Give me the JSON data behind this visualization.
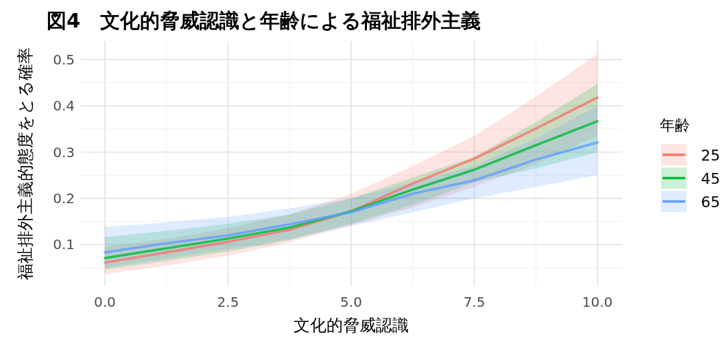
{
  "chart_data": {
    "type": "line",
    "title": "図4　文化的脅威認識と年齢による福祉排外主義",
    "xlabel": "文化的脅威認識",
    "ylabel": "福祉排外主義的態度をとる確率",
    "legend_title": "年齢",
    "legend": "right",
    "grid": true,
    "line_style": "solid",
    "xlim": [
      -0.5,
      10.5
    ],
    "ylim": [
      0.01,
      0.54
    ],
    "xticks": [
      {
        "value": 0,
        "label": "0.0"
      },
      {
        "value": 2.5,
        "label": "2.5"
      },
      {
        "value": 5,
        "label": "5.0"
      },
      {
        "value": 7.5,
        "label": "7.5"
      },
      {
        "value": 10,
        "label": "10.0"
      }
    ],
    "yticks": [
      0.1,
      0.2,
      0.3,
      0.4,
      0.5
    ],
    "x": [
      0,
      1.25,
      2.5,
      3.75,
      5,
      6.25,
      7.5,
      8.75,
      10
    ],
    "series": [
      {
        "name": "25",
        "color": "#f8766d",
        "values": [
          0.061,
          0.083,
          0.106,
          0.132,
          0.172,
          0.232,
          0.286,
          0.351,
          0.418
        ],
        "lower": [
          0.036,
          0.055,
          0.076,
          0.105,
          0.142,
          0.18,
          0.225,
          0.275,
          0.335
        ],
        "upper": [
          0.095,
          0.112,
          0.135,
          0.165,
          0.21,
          0.27,
          0.335,
          0.42,
          0.512
        ]
      },
      {
        "name": "45",
        "color": "#00ba38",
        "values": [
          0.071,
          0.092,
          0.113,
          0.137,
          0.172,
          0.219,
          0.262,
          0.315,
          0.367
        ],
        "lower": [
          0.046,
          0.065,
          0.085,
          0.11,
          0.145,
          0.185,
          0.235,
          0.265,
          0.3
        ],
        "upper": [
          0.116,
          0.13,
          0.145,
          0.165,
          0.2,
          0.245,
          0.29,
          0.365,
          0.448
        ]
      },
      {
        "name": "65",
        "color": "#619cff",
        "values": [
          0.083,
          0.103,
          0.12,
          0.144,
          0.17,
          0.21,
          0.239,
          0.284,
          0.321
        ],
        "lower": [
          0.05,
          0.07,
          0.09,
          0.112,
          0.14,
          0.17,
          0.2,
          0.225,
          0.25
        ],
        "upper": [
          0.138,
          0.148,
          0.16,
          0.178,
          0.2,
          0.235,
          0.27,
          0.33,
          0.4
        ]
      }
    ]
  }
}
